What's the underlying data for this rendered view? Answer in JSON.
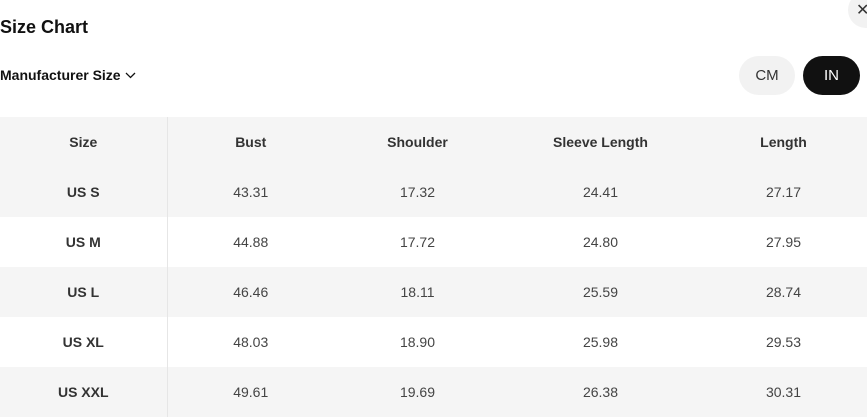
{
  "title": "Size Chart",
  "close_icon": "close-icon",
  "size_selector": {
    "label": "Manufacturer Size",
    "icon": "chevron-down-icon"
  },
  "units": {
    "cm": "CM",
    "in": "IN",
    "selected": "IN"
  },
  "table": {
    "headers": [
      "Size",
      "Bust",
      "Shoulder",
      "Sleeve Length",
      "Length"
    ],
    "rows": [
      [
        "US S",
        "43.31",
        "17.32",
        "24.41",
        "27.17"
      ],
      [
        "US M",
        "44.88",
        "17.72",
        "24.80",
        "27.95"
      ],
      [
        "US L",
        "46.46",
        "18.11",
        "25.59",
        "28.74"
      ],
      [
        "US XL",
        "48.03",
        "18.90",
        "25.98",
        "29.53"
      ],
      [
        "US XXL",
        "49.61",
        "19.69",
        "26.38",
        "30.31"
      ]
    ]
  }
}
